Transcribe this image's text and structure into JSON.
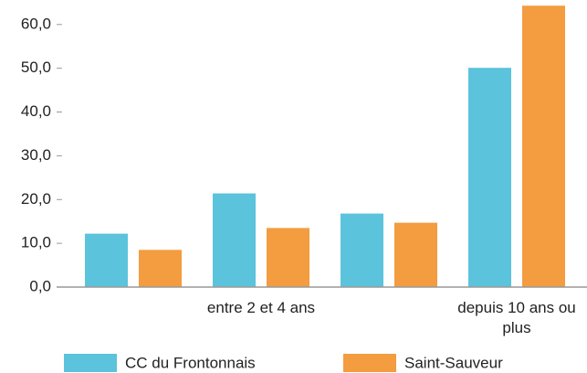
{
  "chart_data": {
    "type": "bar",
    "categories": [
      null,
      "entre 2 et 4 ans",
      null,
      "depuis 10 ans ou plus"
    ],
    "series": [
      {
        "name": "CC du Frontonnais",
        "color": "#5bc3db",
        "values": [
          12.2,
          21.4,
          16.8,
          50.1
        ]
      },
      {
        "name": "Saint-Sauveur",
        "color": "#f39c40",
        "values": [
          8.5,
          13.5,
          14.7,
          64.3
        ]
      }
    ],
    "ylim": [
      0,
      65.6
    ],
    "yticks": [
      {
        "value": 0,
        "label": "0,0"
      },
      {
        "value": 10,
        "label": "10,0"
      },
      {
        "value": 20,
        "label": "20,0"
      },
      {
        "value": 30,
        "label": "30,0"
      },
      {
        "value": 40,
        "label": "40,0"
      },
      {
        "value": 50,
        "label": "50,0"
      },
      {
        "value": 60,
        "label": "60,0"
      }
    ],
    "legend": "bottom"
  }
}
